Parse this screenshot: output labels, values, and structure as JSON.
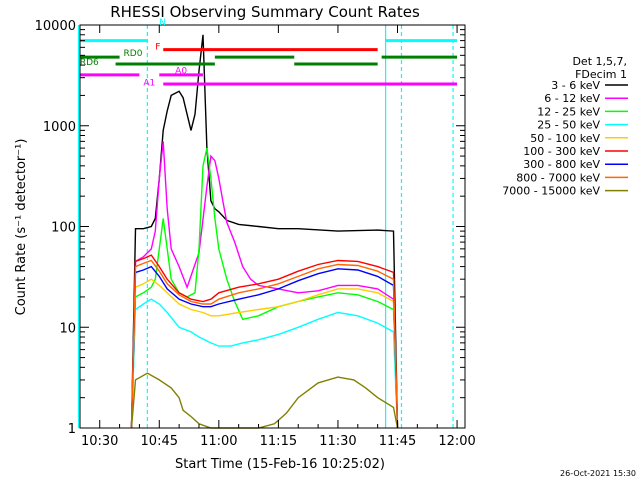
{
  "chart_data": {
    "type": "line",
    "title": "RHESSI Observing Summary Count Rates",
    "xlabel": "Start Time (15-Feb-16 10:25:02)",
    "ylabel": "Count Rate (s⁻¹ detector⁻¹)",
    "y_scale": "log",
    "xlim": [
      "10:25:02",
      "12:02:00"
    ],
    "ylim": [
      1,
      10000
    ],
    "x_ticks": [
      "10:30",
      "10:45",
      "11:00",
      "11:15",
      "11:30",
      "11:45",
      "12:00"
    ],
    "y_ticks": [
      "1",
      "10",
      "100",
      "1000",
      "10000"
    ],
    "legend_title": [
      "Det 1,5,7,",
      "FDecim 1"
    ],
    "legend_position": "right",
    "timestamp": "26-Oct-2021 15:30",
    "flag_labels": [
      "N",
      "F",
      "RD0",
      "RD6",
      "A1",
      "A0"
    ],
    "vertical_lines": [
      {
        "time": "10:24:40",
        "style": "solid"
      },
      {
        "time": "10:42:00",
        "style": "dashed"
      },
      {
        "time": "11:42:00",
        "style": "solid"
      },
      {
        "time": "11:46:00",
        "style": "dashed"
      },
      {
        "time": "11:59:00",
        "style": "dashed"
      }
    ],
    "flag_bars": [
      {
        "label": "N",
        "color": "#00ffff",
        "y": 7000,
        "segments": [
          [
            "10:25",
            "10:42"
          ],
          [
            "11:42",
            "12:00"
          ]
        ]
      },
      {
        "label": "F",
        "color": "#ff0000",
        "y": 5700,
        "segments": [
          [
            "10:46",
            "11:40"
          ]
        ]
      },
      {
        "label": "RD0",
        "color": "#008000",
        "y": 4800,
        "segments": [
          [
            "10:25",
            "10:35"
          ],
          [
            "10:59",
            "11:19"
          ],
          [
            "11:41",
            "12:00"
          ]
        ]
      },
      {
        "label": "RD6",
        "color": "#008000",
        "y": 4100,
        "segments": [
          [
            "10:34",
            "10:59"
          ],
          [
            "11:19",
            "11:40"
          ]
        ]
      },
      {
        "label": "",
        "color": "#ff00ff",
        "y": 3200,
        "segments": [
          [
            "10:25",
            "10:40"
          ]
        ]
      },
      {
        "label": "A0",
        "color": "#ff00ff",
        "y": 3200,
        "segments": [
          [
            "10:45",
            "10:56"
          ]
        ]
      },
      {
        "label": "A1",
        "color": "#ff00ff",
        "y": 2600,
        "segments": [
          [
            "10:46",
            "12:00"
          ]
        ]
      }
    ],
    "series": [
      {
        "name": "3 - 6 keV",
        "color": "#000000",
        "x": [
          "10:38",
          "10:39",
          "10:41",
          "10:43",
          "10:44",
          "10:45",
          "10:46",
          "10:47",
          "10:48",
          "10:50",
          "10:51",
          "10:52",
          "10:53",
          "10:54",
          "10:55",
          "10:56",
          "10:57",
          "10:58",
          "10:59",
          "11:00",
          "11:02",
          "11:05",
          "11:10",
          "11:15",
          "11:20",
          "11:30",
          "11:40",
          "11:44",
          "11:45"
        ],
        "y": [
          1,
          95,
          95,
          100,
          120,
          300,
          900,
          1400,
          2000,
          2200,
          1900,
          1300,
          900,
          1300,
          3500,
          8000,
          600,
          180,
          150,
          140,
          115,
          105,
          100,
          95,
          95,
          90,
          92,
          90,
          1
        ]
      },
      {
        "name": "6 - 12 keV",
        "color": "#ff00ff",
        "x": [
          "10:38",
          "10:39",
          "10:41",
          "10:43",
          "10:44",
          "10:45",
          "10:46",
          "10:47",
          "10:48",
          "10:50",
          "10:52",
          "10:55",
          "10:57",
          "10:58",
          "10:59",
          "11:00",
          "11:01",
          "11:02",
          "11:04",
          "11:06",
          "11:08",
          "11:10",
          "11:15",
          "11:20",
          "11:25",
          "11:30",
          "11:35",
          "11:40",
          "11:44",
          "11:45"
        ],
        "y": [
          1,
          45,
          50,
          60,
          90,
          300,
          700,
          150,
          60,
          40,
          25,
          55,
          250,
          500,
          450,
          300,
          180,
          110,
          70,
          40,
          30,
          26,
          24,
          22,
          23,
          26,
          26,
          24,
          19,
          1
        ]
      },
      {
        "name": "12 - 25 keV",
        "color": "#00ff00",
        "x": [
          "10:38",
          "10:39",
          "10:41",
          "10:43",
          "10:44",
          "10:45",
          "10:46",
          "10:48",
          "10:50",
          "10:52",
          "10:54",
          "10:55",
          "10:56",
          "10:57",
          "10:58",
          "10:59",
          "11:00",
          "11:02",
          "11:04",
          "11:06",
          "11:10",
          "11:15",
          "11:20",
          "11:25",
          "11:30",
          "11:35",
          "11:40",
          "11:44",
          "11:45"
        ],
        "y": [
          1,
          20,
          22,
          25,
          30,
          60,
          120,
          30,
          22,
          20,
          22,
          60,
          400,
          600,
          300,
          120,
          60,
          30,
          18,
          12,
          13,
          16,
          18,
          20,
          22,
          21,
          18,
          15,
          1
        ]
      },
      {
        "name": "25 - 50 keV",
        "color": "#00ffff",
        "x": [
          "10:38",
          "10:39",
          "10:41",
          "10:43",
          "10:45",
          "10:47",
          "10:50",
          "10:53",
          "10:55",
          "10:58",
          "11:00",
          "11:03",
          "11:06",
          "11:10",
          "11:15",
          "11:20",
          "11:25",
          "11:30",
          "11:35",
          "11:40",
          "11:44",
          "11:45"
        ],
        "y": [
          1,
          15,
          17,
          19,
          17,
          14,
          10,
          9,
          8,
          7,
          6.5,
          6.5,
          7,
          7.5,
          8.5,
          10,
          12,
          14,
          13,
          11,
          9,
          1
        ]
      },
      {
        "name": "50 - 100 keV",
        "color": "#ffcc00",
        "x": [
          "10:38",
          "10:39",
          "10:41",
          "10:43",
          "10:45",
          "10:47",
          "10:50",
          "10:53",
          "10:56",
          "10:58",
          "11:00",
          "11:05",
          "11:10",
          "11:15",
          "11:20",
          "11:25",
          "11:30",
          "11:35",
          "11:40",
          "11:44",
          "11:45"
        ],
        "y": [
          1,
          25,
          27,
          30,
          26,
          22,
          17,
          15,
          14,
          13,
          13,
          14,
          15,
          16,
          18,
          21,
          24,
          24,
          22,
          18,
          1
        ]
      },
      {
        "name": "100 - 300 keV",
        "color": "#ff0000",
        "x": [
          "10:38",
          "10:39",
          "10:41",
          "10:43",
          "10:45",
          "10:47",
          "10:50",
          "10:53",
          "10:56",
          "10:58",
          "11:00",
          "11:05",
          "11:10",
          "11:15",
          "11:20",
          "11:25",
          "11:30",
          "11:35",
          "11:40",
          "11:44",
          "11:45"
        ],
        "y": [
          1,
          45,
          48,
          52,
          40,
          30,
          22,
          19,
          18,
          19,
          22,
          25,
          27,
          30,
          36,
          42,
          46,
          45,
          40,
          35,
          1
        ]
      },
      {
        "name": "300 - 800 keV",
        "color": "#0000ff",
        "x": [
          "10:38",
          "10:39",
          "10:41",
          "10:43",
          "10:45",
          "10:47",
          "10:50",
          "10:53",
          "10:56",
          "10:58",
          "11:00",
          "11:05",
          "11:10",
          "11:15",
          "11:20",
          "11:25",
          "11:30",
          "11:35",
          "11:40",
          "11:44",
          "11:45"
        ],
        "y": [
          1,
          35,
          37,
          40,
          32,
          24,
          19,
          17,
          16,
          16,
          17,
          19,
          21,
          24,
          29,
          34,
          38,
          37,
          32,
          26,
          1
        ]
      },
      {
        "name": "800 - 7000 keV",
        "color": "#ff6600",
        "x": [
          "10:38",
          "10:39",
          "10:41",
          "10:43",
          "10:45",
          "10:47",
          "10:50",
          "10:53",
          "10:56",
          "10:58",
          "11:00",
          "11:05",
          "11:10",
          "11:15",
          "11:20",
          "11:25",
          "11:30",
          "11:35",
          "11:40",
          "11:44",
          "11:45"
        ],
        "y": [
          1,
          40,
          43,
          46,
          36,
          27,
          21,
          18,
          17,
          17,
          19,
          22,
          24,
          27,
          32,
          38,
          42,
          41,
          36,
          30,
          1
        ]
      },
      {
        "name": "7000 - 15000 keV",
        "color": "#808000",
        "x": [
          "10:38",
          "10:39",
          "10:42",
          "10:45",
          "10:48",
          "10:50",
          "10:51",
          "10:53",
          "10:55",
          "10:58",
          "11:00",
          "11:10",
          "11:14",
          "11:17",
          "11:20",
          "11:25",
          "11:30",
          "11:34",
          "11:37",
          "11:40",
          "11:44",
          "11:45"
        ],
        "y": [
          1,
          3,
          3.5,
          3,
          2.5,
          2,
          1.5,
          1.3,
          1.1,
          1,
          1,
          1,
          1.1,
          1.4,
          2,
          2.8,
          3.2,
          3,
          2.5,
          2,
          1.6,
          1
        ]
      }
    ]
  }
}
